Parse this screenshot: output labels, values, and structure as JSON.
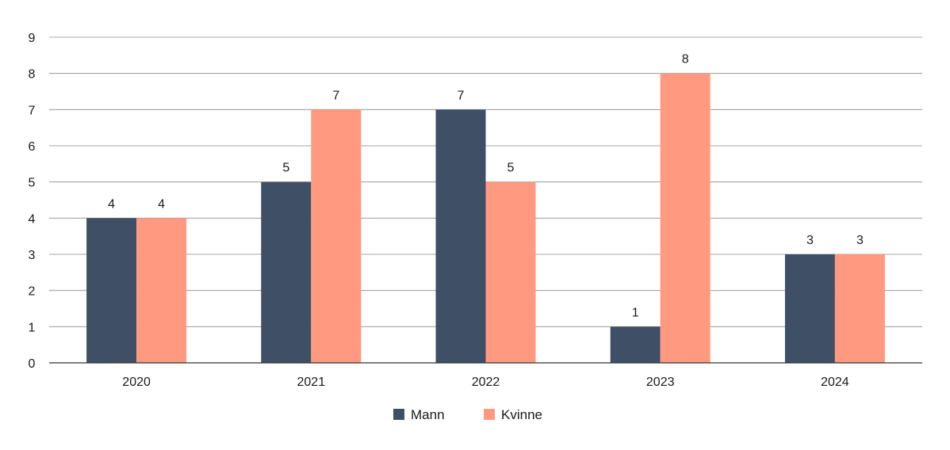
{
  "chart_data": {
    "type": "bar",
    "title": "",
    "xlabel": "",
    "ylabel": "",
    "categories": [
      "2020",
      "2021",
      "2022",
      "2023",
      "2024"
    ],
    "ylim": [
      0,
      9
    ],
    "yticks": [
      "0",
      "1",
      "2",
      "3",
      "4",
      "5",
      "6",
      "7",
      "8",
      "9"
    ],
    "grid": true,
    "legend_position": "bottom",
    "series": [
      {
        "name": "Mann",
        "values": [
          4,
          5,
          7,
          1,
          3
        ],
        "color": "#3f5066"
      },
      {
        "name": "Kvinne",
        "values": [
          4,
          7,
          5,
          8,
          3
        ],
        "color": "#ff9980"
      }
    ]
  }
}
